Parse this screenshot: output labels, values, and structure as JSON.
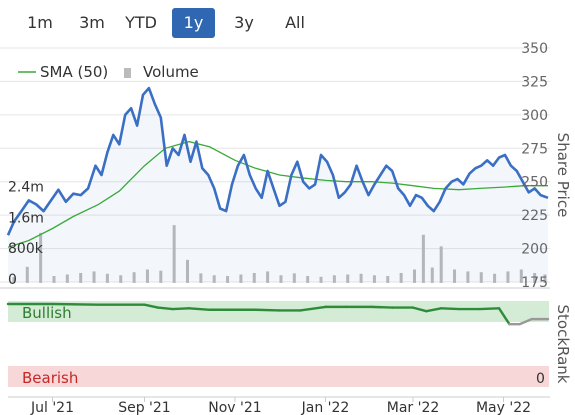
{
  "range_buttons": [
    {
      "label": "1m",
      "active": false
    },
    {
      "label": "3m",
      "active": false
    },
    {
      "label": "YTD",
      "active": false
    },
    {
      "label": "1y",
      "active": true
    },
    {
      "label": "3y",
      "active": false
    },
    {
      "label": "All",
      "active": false
    }
  ],
  "legend": {
    "sma_label": "SMA (50)",
    "volume_label": "Volume"
  },
  "zones": {
    "bullish": "Bullish",
    "bearish": "Bearish",
    "rank_zero": "0"
  },
  "colors": {
    "price": "#3a6fc4",
    "sma": "#3aaa3a",
    "volume": "#bbbbbb",
    "stockrank": "#2e8b3a",
    "stockrank_low": "#999999",
    "bullish_bg": "#d4ecd6",
    "bearish_bg": "#f7d7d7",
    "active_button": "#2f67b3"
  },
  "chart_data": [
    {
      "type": "line",
      "title": "",
      "ylabel": "Share Price",
      "ylim": [
        175,
        350
      ],
      "yticks": [
        175,
        200,
        225,
        250,
        275,
        300,
        325,
        350
      ],
      "xlim": [
        "2021-06-01",
        "2022-05-31"
      ],
      "x_tick_labels": [
        "Jul '21",
        "Sep '21",
        "Nov '21",
        "Jan '22",
        "Mar '22",
        "May '22"
      ],
      "x_tick_dates": [
        "2021-07-01",
        "2021-09-01",
        "2021-11-01",
        "2022-01-01",
        "2022-03-01",
        "2022-05-01"
      ],
      "series": [
        {
          "name": "Price",
          "x": [
            "2021-06-01",
            "2021-06-05",
            "2021-06-10",
            "2021-06-15",
            "2021-06-20",
            "2021-06-25",
            "2021-06-30",
            "2021-07-05",
            "2021-07-10",
            "2021-07-15",
            "2021-07-20",
            "2021-07-25",
            "2021-07-30",
            "2021-08-03",
            "2021-08-07",
            "2021-08-11",
            "2021-08-15",
            "2021-08-19",
            "2021-08-23",
            "2021-08-27",
            "2021-08-31",
            "2021-09-04",
            "2021-09-08",
            "2021-09-12",
            "2021-09-16",
            "2021-09-20",
            "2021-09-24",
            "2021-09-28",
            "2021-10-02",
            "2021-10-06",
            "2021-10-10",
            "2021-10-14",
            "2021-10-18",
            "2021-10-22",
            "2021-10-26",
            "2021-10-30",
            "2021-11-03",
            "2021-11-07",
            "2021-11-11",
            "2021-11-15",
            "2021-11-19",
            "2021-11-23",
            "2021-11-27",
            "2021-12-01",
            "2021-12-05",
            "2021-12-09",
            "2021-12-13",
            "2021-12-17",
            "2021-12-21",
            "2021-12-25",
            "2021-12-29",
            "2022-01-02",
            "2022-01-06",
            "2022-01-10",
            "2022-01-14",
            "2022-01-18",
            "2022-01-22",
            "2022-01-26",
            "2022-01-30",
            "2022-02-03",
            "2022-02-07",
            "2022-02-11",
            "2022-02-15",
            "2022-02-19",
            "2022-02-23",
            "2022-02-27",
            "2022-03-03",
            "2022-03-07",
            "2022-03-11",
            "2022-03-15",
            "2022-03-19",
            "2022-03-23",
            "2022-03-27",
            "2022-03-31",
            "2022-04-04",
            "2022-04-08",
            "2022-04-12",
            "2022-04-16",
            "2022-04-20",
            "2022-04-24",
            "2022-04-28",
            "2022-05-02",
            "2022-05-06",
            "2022-05-10",
            "2022-05-14",
            "2022-05-18",
            "2022-05-22",
            "2022-05-26",
            "2022-05-31"
          ],
          "values": [
            210,
            220,
            228,
            236,
            233,
            228,
            236,
            244,
            235,
            241,
            240,
            245,
            262,
            255,
            272,
            285,
            278,
            300,
            305,
            292,
            315,
            320,
            308,
            298,
            262,
            275,
            270,
            285,
            265,
            280,
            260,
            255,
            245,
            230,
            228,
            248,
            262,
            270,
            255,
            245,
            238,
            258,
            245,
            232,
            235,
            255,
            265,
            250,
            245,
            248,
            270,
            265,
            255,
            238,
            242,
            248,
            262,
            250,
            240,
            248,
            255,
            262,
            258,
            245,
            240,
            232,
            240,
            238,
            232,
            228,
            235,
            245,
            250,
            252,
            248,
            256,
            260,
            262,
            266,
            262,
            268,
            270,
            262,
            258,
            250,
            242,
            245,
            240,
            238
          ]
        },
        {
          "name": "SMA (50)",
          "x": [
            "2021-06-01",
            "2021-06-15",
            "2021-07-01",
            "2021-07-15",
            "2021-08-01",
            "2021-08-15",
            "2021-09-01",
            "2021-09-15",
            "2021-10-01",
            "2021-10-15",
            "2021-11-01",
            "2021-11-15",
            "2021-12-01",
            "2021-12-15",
            "2022-01-01",
            "2022-01-15",
            "2022-02-01",
            "2022-02-15",
            "2022-03-01",
            "2022-03-15",
            "2022-04-01",
            "2022-04-15",
            "2022-05-01",
            "2022-05-15",
            "2022-05-31"
          ],
          "values": [
            201,
            206,
            215,
            224,
            233,
            243,
            262,
            275,
            280,
            276,
            266,
            260,
            255,
            253,
            251,
            250,
            250,
            249,
            247,
            245,
            244,
            245,
            246,
            247,
            247
          ]
        }
      ]
    },
    {
      "type": "bar",
      "title": "",
      "ylabel": "Volume",
      "yticks": [
        "0",
        "800k",
        "1.6m",
        "2.4m"
      ],
      "ytick_values": [
        0,
        800000,
        1600000,
        2400000
      ],
      "ylim": [
        0,
        2800000
      ],
      "series": [
        {
          "name": "Volume",
          "x": [
            "2021-06-05",
            "2021-06-14",
            "2021-06-23",
            "2021-07-02",
            "2021-07-11",
            "2021-07-20",
            "2021-07-29",
            "2021-08-07",
            "2021-08-16",
            "2021-08-25",
            "2021-09-03",
            "2021-09-12",
            "2021-09-21",
            "2021-09-30",
            "2021-10-09",
            "2021-10-18",
            "2021-10-27",
            "2021-11-05",
            "2021-11-14",
            "2021-11-23",
            "2021-12-02",
            "2021-12-11",
            "2021-12-20",
            "2021-12-29",
            "2022-01-07",
            "2022-01-16",
            "2022-01-25",
            "2022-02-03",
            "2022-02-12",
            "2022-02-21",
            "2022-03-02",
            "2022-03-08",
            "2022-03-14",
            "2022-03-20",
            "2022-03-29",
            "2022-04-07",
            "2022-04-16",
            "2022-04-25",
            "2022-05-04",
            "2022-05-13",
            "2022-05-22",
            "2022-05-29"
          ],
          "values": [
            150000,
            420000,
            1300000,
            180000,
            220000,
            260000,
            300000,
            240000,
            200000,
            280000,
            350000,
            320000,
            1500000,
            600000,
            250000,
            200000,
            180000,
            220000,
            260000,
            300000,
            200000,
            250000,
            180000,
            160000,
            200000,
            220000,
            240000,
            200000,
            180000,
            260000,
            350000,
            1250000,
            400000,
            950000,
            350000,
            300000,
            280000,
            240000,
            300000,
            350000,
            260000,
            220000
          ]
        }
      ]
    },
    {
      "type": "line",
      "title": "",
      "ylabel": "StockRank",
      "ylim": [
        0,
        100
      ],
      "yticks": [
        0
      ],
      "series": [
        {
          "name": "StockRank",
          "x": [
            "2021-06-01",
            "2021-07-01",
            "2021-08-01",
            "2021-09-01",
            "2021-09-10",
            "2021-09-20",
            "2021-10-01",
            "2021-10-15",
            "2021-11-01",
            "2021-11-15",
            "2021-12-01",
            "2021-12-15",
            "2022-01-01",
            "2022-01-15",
            "2022-02-01",
            "2022-02-15",
            "2022-03-01",
            "2022-03-10",
            "2022-03-20",
            "2022-04-01",
            "2022-04-15",
            "2022-04-28",
            "2022-05-05",
            "2022-05-12",
            "2022-05-20",
            "2022-05-31"
          ],
          "values": [
            100,
            100,
            99,
            99,
            95,
            93,
            94,
            92,
            92,
            92,
            91,
            91,
            96,
            96,
            96,
            95,
            95,
            90,
            94,
            93,
            93,
            94,
            72,
            72,
            79,
            79
          ]
        }
      ]
    }
  ]
}
